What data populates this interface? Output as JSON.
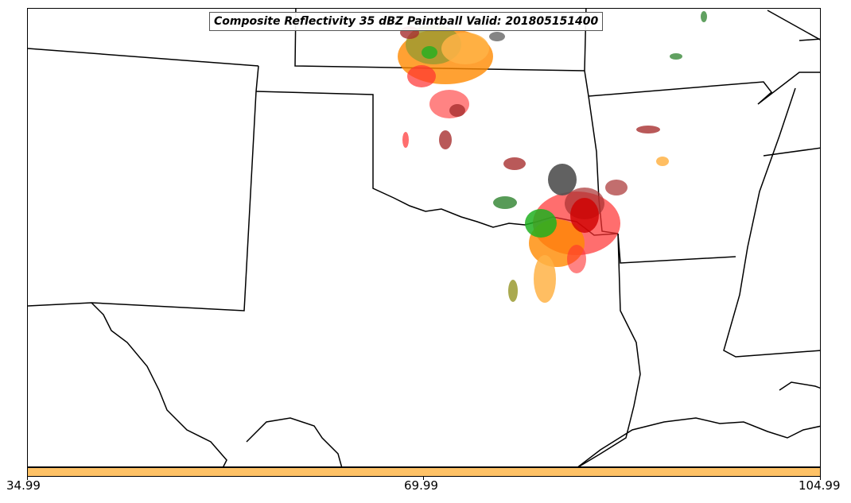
{
  "title": "Composite Reflectivity 35 dBZ Paintball Valid: 201805151400",
  "colorbar": {
    "color": "#FFC266",
    "ticks": [
      "34.99",
      "69.99",
      "104.99"
    ]
  },
  "colors": {
    "red": "#FF3030",
    "dark_red": "#A83030",
    "orange": "#FF8A00",
    "light_orange": "#FFB347",
    "green": "#20B020",
    "dark_green": "#3A8A3A",
    "olive": "#9A9A30",
    "gray": "#505050"
  }
}
